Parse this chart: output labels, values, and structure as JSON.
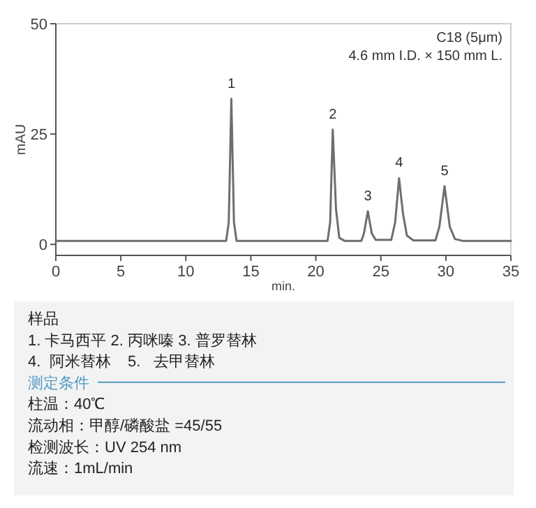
{
  "chart_data": {
    "type": "line",
    "xlabel": "min.",
    "ylabel": "mAU",
    "xlim": [
      0,
      35
    ],
    "xticks": [
      0,
      5,
      10,
      15,
      20,
      25,
      30,
      35
    ],
    "ylim": [
      -2.5,
      50
    ],
    "yticks": [
      0,
      25,
      50
    ],
    "color": "#6e6e6e",
    "x": [
      0,
      13.1,
      13.3,
      13.5,
      13.7,
      13.9,
      20.9,
      21.1,
      21.3,
      21.55,
      21.8,
      22.2,
      23.5,
      23.7,
      24.0,
      24.3,
      24.6,
      25.8,
      26.1,
      26.4,
      26.7,
      27.0,
      27.5,
      29.2,
      29.5,
      29.9,
      30.3,
      30.7,
      31.3,
      35
    ],
    "values": [
      0.8,
      0.8,
      5,
      33,
      5,
      0.8,
      0.8,
      5,
      26,
      8,
      1.5,
      0.8,
      0.8,
      2.5,
      7.5,
      2.5,
      1.0,
      1.0,
      5,
      15,
      7,
      2,
      0.9,
      0.9,
      4,
      13.2,
      4,
      1.2,
      0.8,
      0.8
    ],
    "annotations": [
      "C18 (5μm)",
      "4.6 mm I.D. × 150 mm L.",
      {
        "text": "1",
        "x": 13.5,
        "y": 33
      },
      {
        "text": "2",
        "x": 21.3,
        "y": 26
      },
      {
        "text": "3",
        "x": 24.0,
        "y": 7.5
      },
      {
        "text": "4",
        "x": 26.4,
        "y": 15
      },
      {
        "text": "5",
        "x": 29.9,
        "y": 13.2
      },
      "样品",
      "1. 卡马西平 2. 丙咪嗪 3. 普罗替林",
      "4.  阿米替林    5.   去甲替林",
      "测定条件",
      "柱温：40℃",
      "流动相：甲醇/磷酸盐 =45/55",
      "检测波长：UV 254 nm",
      "流速：1mL/min"
    ]
  }
}
